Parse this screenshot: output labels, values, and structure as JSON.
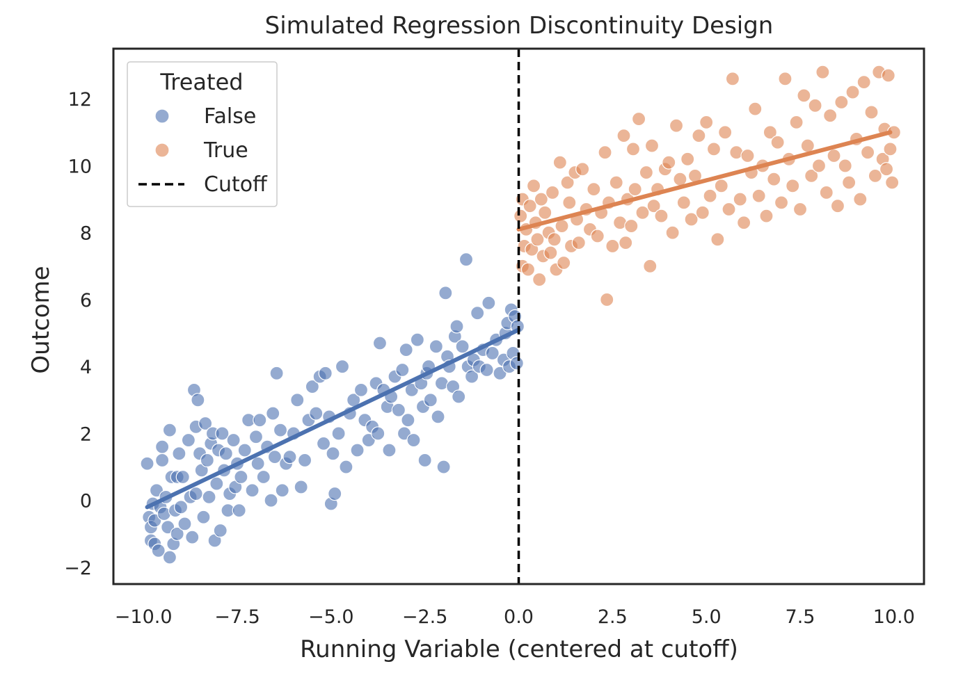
{
  "chart_data": {
    "type": "scatter",
    "title": "Simulated Regression Discontinuity Design",
    "xlabel": "Running Variable (centered at cutoff)",
    "ylabel": "Outcome",
    "xlim": [
      -10.8,
      10.8
    ],
    "ylim": [
      -2.5,
      13.5
    ],
    "x_ticks": [
      -10.0,
      -7.5,
      -5.0,
      -2.5,
      0.0,
      2.5,
      5.0,
      7.5,
      10.0
    ],
    "x_tick_labels": [
      "−10.0",
      "−7.5",
      "−5.0",
      "−2.5",
      "0.0",
      "2.5",
      "5.0",
      "7.5",
      "10.0"
    ],
    "y_ticks": [
      -2,
      0,
      2,
      4,
      6,
      8,
      10,
      12
    ],
    "y_tick_labels": [
      "−2",
      "0",
      "2",
      "4",
      "6",
      "8",
      "10",
      "12"
    ],
    "grid": false,
    "legend": {
      "title": "Treated",
      "placement": "top-left",
      "entries": [
        {
          "label": "False",
          "kind": "point",
          "color": "#4c72b0"
        },
        {
          "label": "True",
          "kind": "point",
          "color": "#dd8452"
        },
        {
          "label": "Cutoff",
          "kind": "dashed-line",
          "color": "#000000"
        }
      ]
    },
    "cutoff": {
      "x": 0.0,
      "color": "#000000"
    },
    "series": [
      {
        "name": "False",
        "color": "#4c72b0",
        "fit": {
          "x": [
            -9.9,
            0.0
          ],
          "y": [
            -0.2,
            5.1
          ]
        },
        "points": [
          [
            -9.9,
            1.1
          ],
          [
            -9.85,
            -0.5
          ],
          [
            -9.8,
            -0.8
          ],
          [
            -9.8,
            -1.2
          ],
          [
            -9.75,
            -0.1
          ],
          [
            -9.7,
            -0.6
          ],
          [
            -9.7,
            -1.3
          ],
          [
            -9.65,
            0.3
          ],
          [
            -9.6,
            -1.5
          ],
          [
            -9.55,
            -0.2
          ],
          [
            -9.5,
            1.6
          ],
          [
            -9.5,
            1.2
          ],
          [
            -9.45,
            -0.4
          ],
          [
            -9.4,
            0.1
          ],
          [
            -9.35,
            -0.8
          ],
          [
            -9.3,
            2.1
          ],
          [
            -9.3,
            -1.7
          ],
          [
            -9.25,
            0.7
          ],
          [
            -9.2,
            -1.3
          ],
          [
            -9.15,
            -0.3
          ],
          [
            -9.1,
            0.7
          ],
          [
            -9.1,
            -1.0
          ],
          [
            -9.05,
            1.4
          ],
          [
            -9.0,
            -0.2
          ],
          [
            -8.95,
            0.7
          ],
          [
            -8.9,
            -0.7
          ],
          [
            -8.8,
            1.8
          ],
          [
            -8.75,
            0.1
          ],
          [
            -8.7,
            -1.1
          ],
          [
            -8.65,
            3.3
          ],
          [
            -8.6,
            0.2
          ],
          [
            -8.6,
            2.2
          ],
          [
            -8.55,
            3.0
          ],
          [
            -8.5,
            1.4
          ],
          [
            -8.45,
            0.9
          ],
          [
            -8.4,
            -0.5
          ],
          [
            -8.35,
            2.3
          ],
          [
            -8.3,
            1.2
          ],
          [
            -8.25,
            0.1
          ],
          [
            -8.2,
            1.7
          ],
          [
            -8.15,
            2.0
          ],
          [
            -8.1,
            -1.2
          ],
          [
            -8.05,
            0.5
          ],
          [
            -8.0,
            1.5
          ],
          [
            -7.95,
            -0.9
          ],
          [
            -7.9,
            2.0
          ],
          [
            -7.85,
            0.9
          ],
          [
            -7.8,
            1.4
          ],
          [
            -7.75,
            -0.3
          ],
          [
            -7.7,
            0.2
          ],
          [
            -7.6,
            1.8
          ],
          [
            -7.55,
            0.4
          ],
          [
            -7.5,
            1.1
          ],
          [
            -7.45,
            -0.3
          ],
          [
            -7.4,
            0.7
          ],
          [
            -7.3,
            1.5
          ],
          [
            -7.2,
            2.4
          ],
          [
            -7.1,
            0.3
          ],
          [
            -7.0,
            1.9
          ],
          [
            -6.95,
            1.1
          ],
          [
            -6.9,
            2.4
          ],
          [
            -6.8,
            0.7
          ],
          [
            -6.7,
            1.6
          ],
          [
            -6.6,
            0.0
          ],
          [
            -6.55,
            2.6
          ],
          [
            -6.5,
            1.3
          ],
          [
            -6.45,
            3.8
          ],
          [
            -6.35,
            2.1
          ],
          [
            -6.3,
            0.3
          ],
          [
            -6.2,
            1.1
          ],
          [
            -6.1,
            1.3
          ],
          [
            -6.0,
            2.0
          ],
          [
            -5.9,
            3.0
          ],
          [
            -5.8,
            0.4
          ],
          [
            -5.7,
            1.2
          ],
          [
            -5.6,
            2.4
          ],
          [
            -5.5,
            3.4
          ],
          [
            -5.4,
            2.6
          ],
          [
            -5.3,
            3.7
          ],
          [
            -5.2,
            1.7
          ],
          [
            -5.15,
            3.8
          ],
          [
            -5.05,
            2.5
          ],
          [
            -5.0,
            -0.1
          ],
          [
            -4.95,
            1.4
          ],
          [
            -4.9,
            0.2
          ],
          [
            -4.8,
            2.0
          ],
          [
            -4.7,
            4.0
          ],
          [
            -4.6,
            1.0
          ],
          [
            -4.5,
            2.6
          ],
          [
            -4.4,
            3.0
          ],
          [
            -4.3,
            1.5
          ],
          [
            -4.2,
            3.3
          ],
          [
            -4.1,
            2.4
          ],
          [
            -4.0,
            1.8
          ],
          [
            -3.9,
            2.2
          ],
          [
            -3.8,
            3.5
          ],
          [
            -3.75,
            2.0
          ],
          [
            -3.7,
            4.7
          ],
          [
            -3.6,
            3.3
          ],
          [
            -3.5,
            2.8
          ],
          [
            -3.45,
            1.5
          ],
          [
            -3.4,
            3.1
          ],
          [
            -3.3,
            3.7
          ],
          [
            -3.2,
            2.7
          ],
          [
            -3.1,
            3.9
          ],
          [
            -3.05,
            2.0
          ],
          [
            -3.0,
            4.5
          ],
          [
            -2.95,
            2.4
          ],
          [
            -2.85,
            3.3
          ],
          [
            -2.8,
            1.8
          ],
          [
            -2.7,
            4.8
          ],
          [
            -2.6,
            3.5
          ],
          [
            -2.55,
            2.8
          ],
          [
            -2.5,
            1.2
          ],
          [
            -2.45,
            3.8
          ],
          [
            -2.4,
            4.0
          ],
          [
            -2.35,
            3.0
          ],
          [
            -2.2,
            4.6
          ],
          [
            -2.15,
            2.5
          ],
          [
            -2.05,
            3.5
          ],
          [
            -2.0,
            1.0
          ],
          [
            -1.95,
            6.2
          ],
          [
            -1.9,
            4.3
          ],
          [
            -1.85,
            4.0
          ],
          [
            -1.75,
            3.4
          ],
          [
            -1.7,
            4.9
          ],
          [
            -1.65,
            5.2
          ],
          [
            -1.6,
            3.1
          ],
          [
            -1.5,
            4.6
          ],
          [
            -1.35,
            4.0
          ],
          [
            -1.25,
            3.7
          ],
          [
            -1.2,
            4.2
          ],
          [
            -1.1,
            5.6
          ],
          [
            -1.05,
            4.0
          ],
          [
            -0.95,
            4.5
          ],
          [
            -0.85,
            3.9
          ],
          [
            -0.8,
            5.9
          ],
          [
            -0.7,
            4.4
          ],
          [
            -0.6,
            4.8
          ],
          [
            -0.5,
            3.8
          ],
          [
            -0.4,
            4.2
          ],
          [
            -0.35,
            5.0
          ],
          [
            -0.3,
            5.3
          ],
          [
            -0.25,
            4.0
          ],
          [
            -0.2,
            5.7
          ],
          [
            -0.15,
            4.4
          ],
          [
            -0.1,
            5.5
          ],
          [
            -0.05,
            4.1
          ],
          [
            -0.03,
            5.2
          ],
          [
            -1.4,
            7.2
          ]
        ]
      },
      {
        "name": "True",
        "color": "#dd8452",
        "fit": {
          "x": [
            0.0,
            9.9
          ],
          "y": [
            8.1,
            11.0
          ]
        },
        "points": [
          [
            0.05,
            8.5
          ],
          [
            0.1,
            7.0
          ],
          [
            0.1,
            9.0
          ],
          [
            0.15,
            7.6
          ],
          [
            0.2,
            8.1
          ],
          [
            0.25,
            6.9
          ],
          [
            0.3,
            8.8
          ],
          [
            0.35,
            7.5
          ],
          [
            0.4,
            9.4
          ],
          [
            0.45,
            8.3
          ],
          [
            0.5,
            7.8
          ],
          [
            0.55,
            6.6
          ],
          [
            0.6,
            9.0
          ],
          [
            0.65,
            7.3
          ],
          [
            0.7,
            8.6
          ],
          [
            0.8,
            8.0
          ],
          [
            0.85,
            7.4
          ],
          [
            0.9,
            9.2
          ],
          [
            0.95,
            7.8
          ],
          [
            1.0,
            6.9
          ],
          [
            1.1,
            10.1
          ],
          [
            1.15,
            8.2
          ],
          [
            1.2,
            7.1
          ],
          [
            1.3,
            9.5
          ],
          [
            1.35,
            8.9
          ],
          [
            1.4,
            7.6
          ],
          [
            1.5,
            9.8
          ],
          [
            1.55,
            8.4
          ],
          [
            1.6,
            7.7
          ],
          [
            1.7,
            9.9
          ],
          [
            1.8,
            8.7
          ],
          [
            1.9,
            8.1
          ],
          [
            2.0,
            9.3
          ],
          [
            2.1,
            7.9
          ],
          [
            2.2,
            8.6
          ],
          [
            2.3,
            10.4
          ],
          [
            2.35,
            6.0
          ],
          [
            2.4,
            8.9
          ],
          [
            2.5,
            7.6
          ],
          [
            2.6,
            9.5
          ],
          [
            2.7,
            8.3
          ],
          [
            2.8,
            10.9
          ],
          [
            2.85,
            7.7
          ],
          [
            2.9,
            9.0
          ],
          [
            3.0,
            8.2
          ],
          [
            3.05,
            10.5
          ],
          [
            3.1,
            9.3
          ],
          [
            3.2,
            11.4
          ],
          [
            3.3,
            8.6
          ],
          [
            3.4,
            9.8
          ],
          [
            3.5,
            7.0
          ],
          [
            3.55,
            10.6
          ],
          [
            3.6,
            8.8
          ],
          [
            3.7,
            9.3
          ],
          [
            3.8,
            8.5
          ],
          [
            3.9,
            9.9
          ],
          [
            4.0,
            10.1
          ],
          [
            4.1,
            8.0
          ],
          [
            4.2,
            11.2
          ],
          [
            4.3,
            9.6
          ],
          [
            4.4,
            8.9
          ],
          [
            4.5,
            10.2
          ],
          [
            4.6,
            8.4
          ],
          [
            4.7,
            9.7
          ],
          [
            4.8,
            10.9
          ],
          [
            4.9,
            8.6
          ],
          [
            5.0,
            11.3
          ],
          [
            5.1,
            9.1
          ],
          [
            5.2,
            10.5
          ],
          [
            5.3,
            7.8
          ],
          [
            5.4,
            9.4
          ],
          [
            5.5,
            11.0
          ],
          [
            5.6,
            8.7
          ],
          [
            5.7,
            12.6
          ],
          [
            5.8,
            10.4
          ],
          [
            5.9,
            9.0
          ],
          [
            6.0,
            8.3
          ],
          [
            6.1,
            10.3
          ],
          [
            6.2,
            9.8
          ],
          [
            6.3,
            11.7
          ],
          [
            6.4,
            9.1
          ],
          [
            6.5,
            10.0
          ],
          [
            6.6,
            8.5
          ],
          [
            6.7,
            11.0
          ],
          [
            6.8,
            9.6
          ],
          [
            6.9,
            10.7
          ],
          [
            7.0,
            8.9
          ],
          [
            7.1,
            12.6
          ],
          [
            7.2,
            10.2
          ],
          [
            7.3,
            9.4
          ],
          [
            7.4,
            11.3
          ],
          [
            7.5,
            8.7
          ],
          [
            7.6,
            12.1
          ],
          [
            7.7,
            10.6
          ],
          [
            7.8,
            9.7
          ],
          [
            7.9,
            11.8
          ],
          [
            8.0,
            10.0
          ],
          [
            8.1,
            12.8
          ],
          [
            8.2,
            9.2
          ],
          [
            8.3,
            11.5
          ],
          [
            8.4,
            10.3
          ],
          [
            8.5,
            8.8
          ],
          [
            8.6,
            11.9
          ],
          [
            8.7,
            10.0
          ],
          [
            8.8,
            9.5
          ],
          [
            8.9,
            12.2
          ],
          [
            9.0,
            10.8
          ],
          [
            9.1,
            9.0
          ],
          [
            9.2,
            12.5
          ],
          [
            9.3,
            10.4
          ],
          [
            9.4,
            11.6
          ],
          [
            9.5,
            9.7
          ],
          [
            9.6,
            12.8
          ],
          [
            9.7,
            10.2
          ],
          [
            9.75,
            11.1
          ],
          [
            9.8,
            9.9
          ],
          [
            9.85,
            12.7
          ],
          [
            9.9,
            10.5
          ],
          [
            9.95,
            9.5
          ],
          [
            10.0,
            11.0
          ]
        ]
      }
    ]
  }
}
